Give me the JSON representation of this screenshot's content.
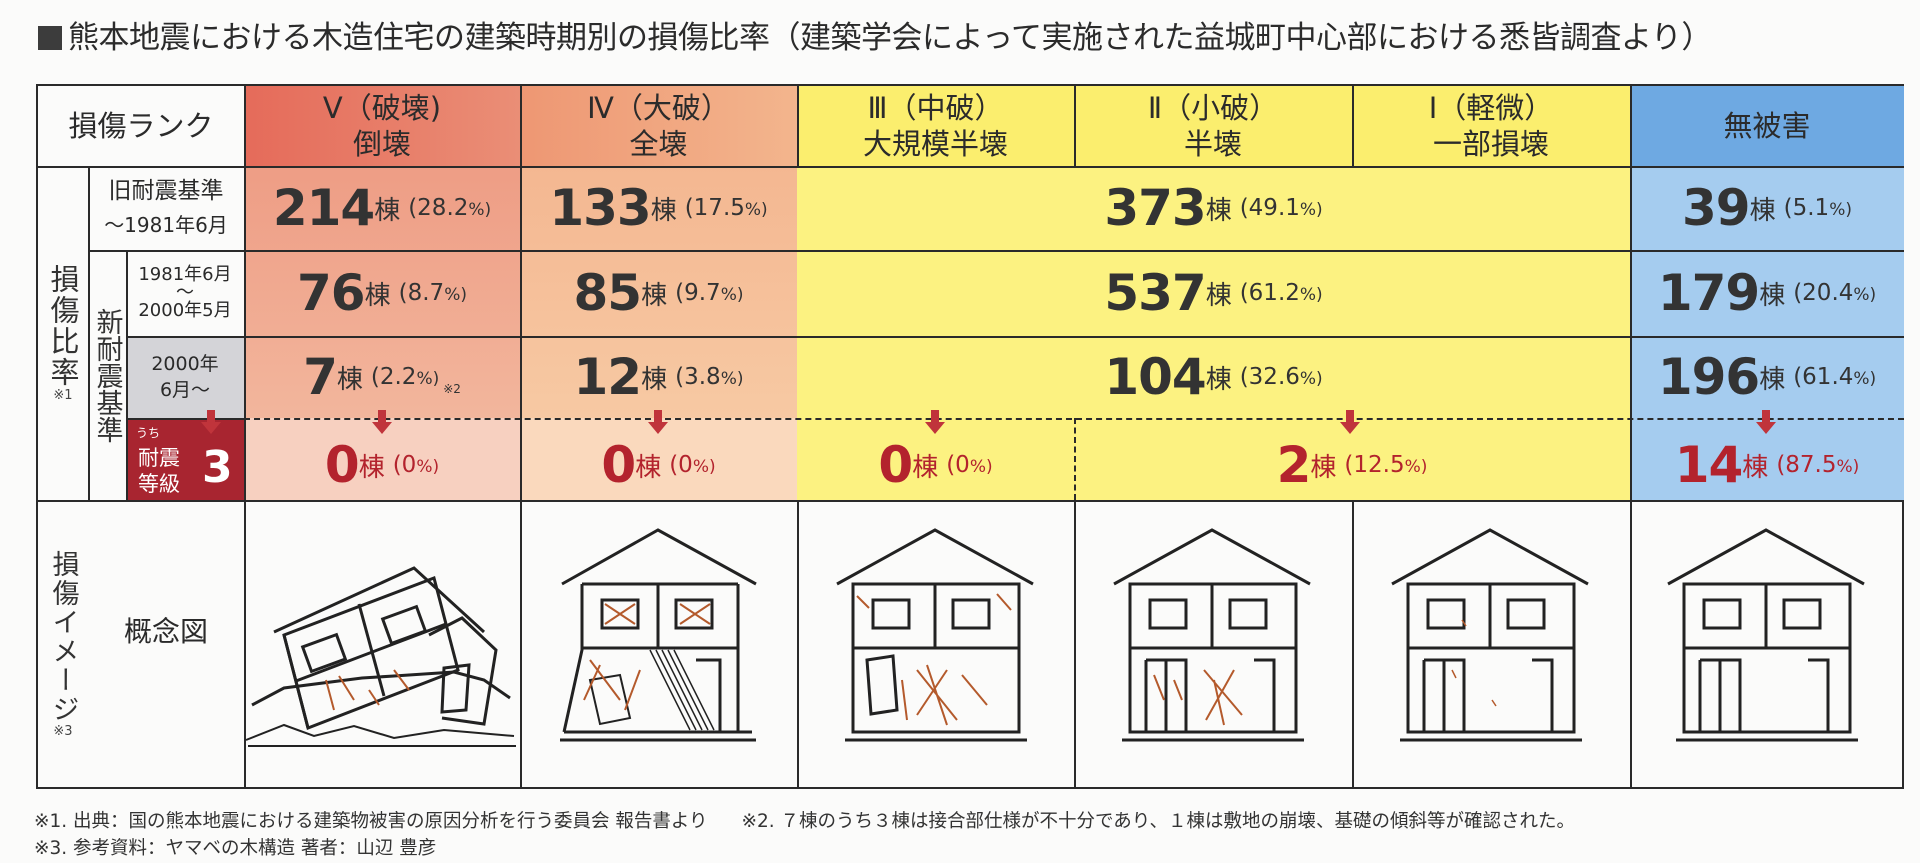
{
  "title": "熊本地震における木造住宅の建築時期別の損傷比率（建築学会によって実施された益城町中心部における悉皆調査より）",
  "header": {
    "rank_label": "損傷ランク",
    "cols": [
      {
        "top": "Ⅴ（破壊)",
        "bottom": "倒壊"
      },
      {
        "top": "Ⅳ（大破）",
        "bottom": "全壊"
      },
      {
        "top": "Ⅲ（中破）",
        "bottom": "大規模半壊"
      },
      {
        "top": "Ⅱ（小破）",
        "bottom": "半壊"
      },
      {
        "top": "Ⅰ（軽微）",
        "bottom": "一部損壊"
      },
      {
        "top": "無被害",
        "bottom": ""
      }
    ]
  },
  "side": {
    "ratio_label": "損傷比率",
    "ratio_note": "※1",
    "new_std": "新耐震基準",
    "image_label": "損傷イメージ",
    "image_note": "※3",
    "concept": "概念図"
  },
  "rows": {
    "old": {
      "label1": "旧耐震基準",
      "label2": "～1981年6月",
      "v": {
        "n": "214",
        "u": "棟",
        "p": "(28.2",
        "pu": "%)"
      },
      "iv": {
        "n": "133",
        "u": "棟",
        "p": "(17.5",
        "pu": "%)"
      },
      "mid": {
        "n": "373",
        "u": "棟",
        "p": "(49.1",
        "pu": "%)"
      },
      "none": {
        "n": "39",
        "u": "棟",
        "p": "(5.1",
        "pu": "%)"
      }
    },
    "r1981": {
      "label1": "1981年6月",
      "label2": "～",
      "label3": "2000年5月",
      "v": {
        "n": "76",
        "u": "棟",
        "p": "(8.7",
        "pu": "%)"
      },
      "iv": {
        "n": "85",
        "u": "棟",
        "p": "(9.7",
        "pu": "%)"
      },
      "mid": {
        "n": "537",
        "u": "棟",
        "p": "(61.2",
        "pu": "%)"
      },
      "none": {
        "n": "179",
        "u": "棟",
        "p": "(20.4",
        "pu": "%)"
      }
    },
    "r2000": {
      "label1": "2000年",
      "label2": "6月～",
      "v": {
        "n": "7",
        "u": "棟",
        "p": "(2.2",
        "pu": "%)",
        "note": "※2"
      },
      "iv": {
        "n": "12",
        "u": "棟",
        "p": "(3.8",
        "pu": "%)"
      },
      "mid": {
        "n": "104",
        "u": "棟",
        "p": "(32.6",
        "pu": "%)"
      },
      "none": {
        "n": "196",
        "u": "棟",
        "p": "(61.4",
        "pu": "%)"
      }
    },
    "grade3": {
      "uchi": "うち",
      "label1": "耐震",
      "label2": "等級",
      "num": "3",
      "v": {
        "n": "0",
        "u": "棟",
        "p": "(0",
        "pu": "%)"
      },
      "iv": {
        "n": "0",
        "u": "棟",
        "p": "(0",
        "pu": "%)"
      },
      "iii": {
        "n": "0",
        "u": "棟",
        "p": "(0",
        "pu": "%)"
      },
      "ii_i": {
        "n": "2",
        "u": "棟",
        "p": "(12.5",
        "pu": "%)"
      },
      "none": {
        "n": "14",
        "u": "棟",
        "p": "(87.5",
        "pu": "%)"
      }
    }
  },
  "colors": {
    "rank5": "#e77c69",
    "rank4": "#f1a77e",
    "yellow": "#fbf07d",
    "blue": "#9ec9ef",
    "blue_hdr": "#6aa6e1",
    "accent_red": "#b3232d"
  },
  "notes": {
    "n1": "※1. 出典：国の熊本地震における建築物被害の原因分析を行う委員会 報告書より",
    "n2": "※2. ７棟のうち３棟は接合部仕様が不十分であり、１棟は敷地の崩壊、基礎の傾斜等が確認された。",
    "n3": "※3. 参考資料：ヤマベの木構造 著者：山辺 豊彦"
  }
}
